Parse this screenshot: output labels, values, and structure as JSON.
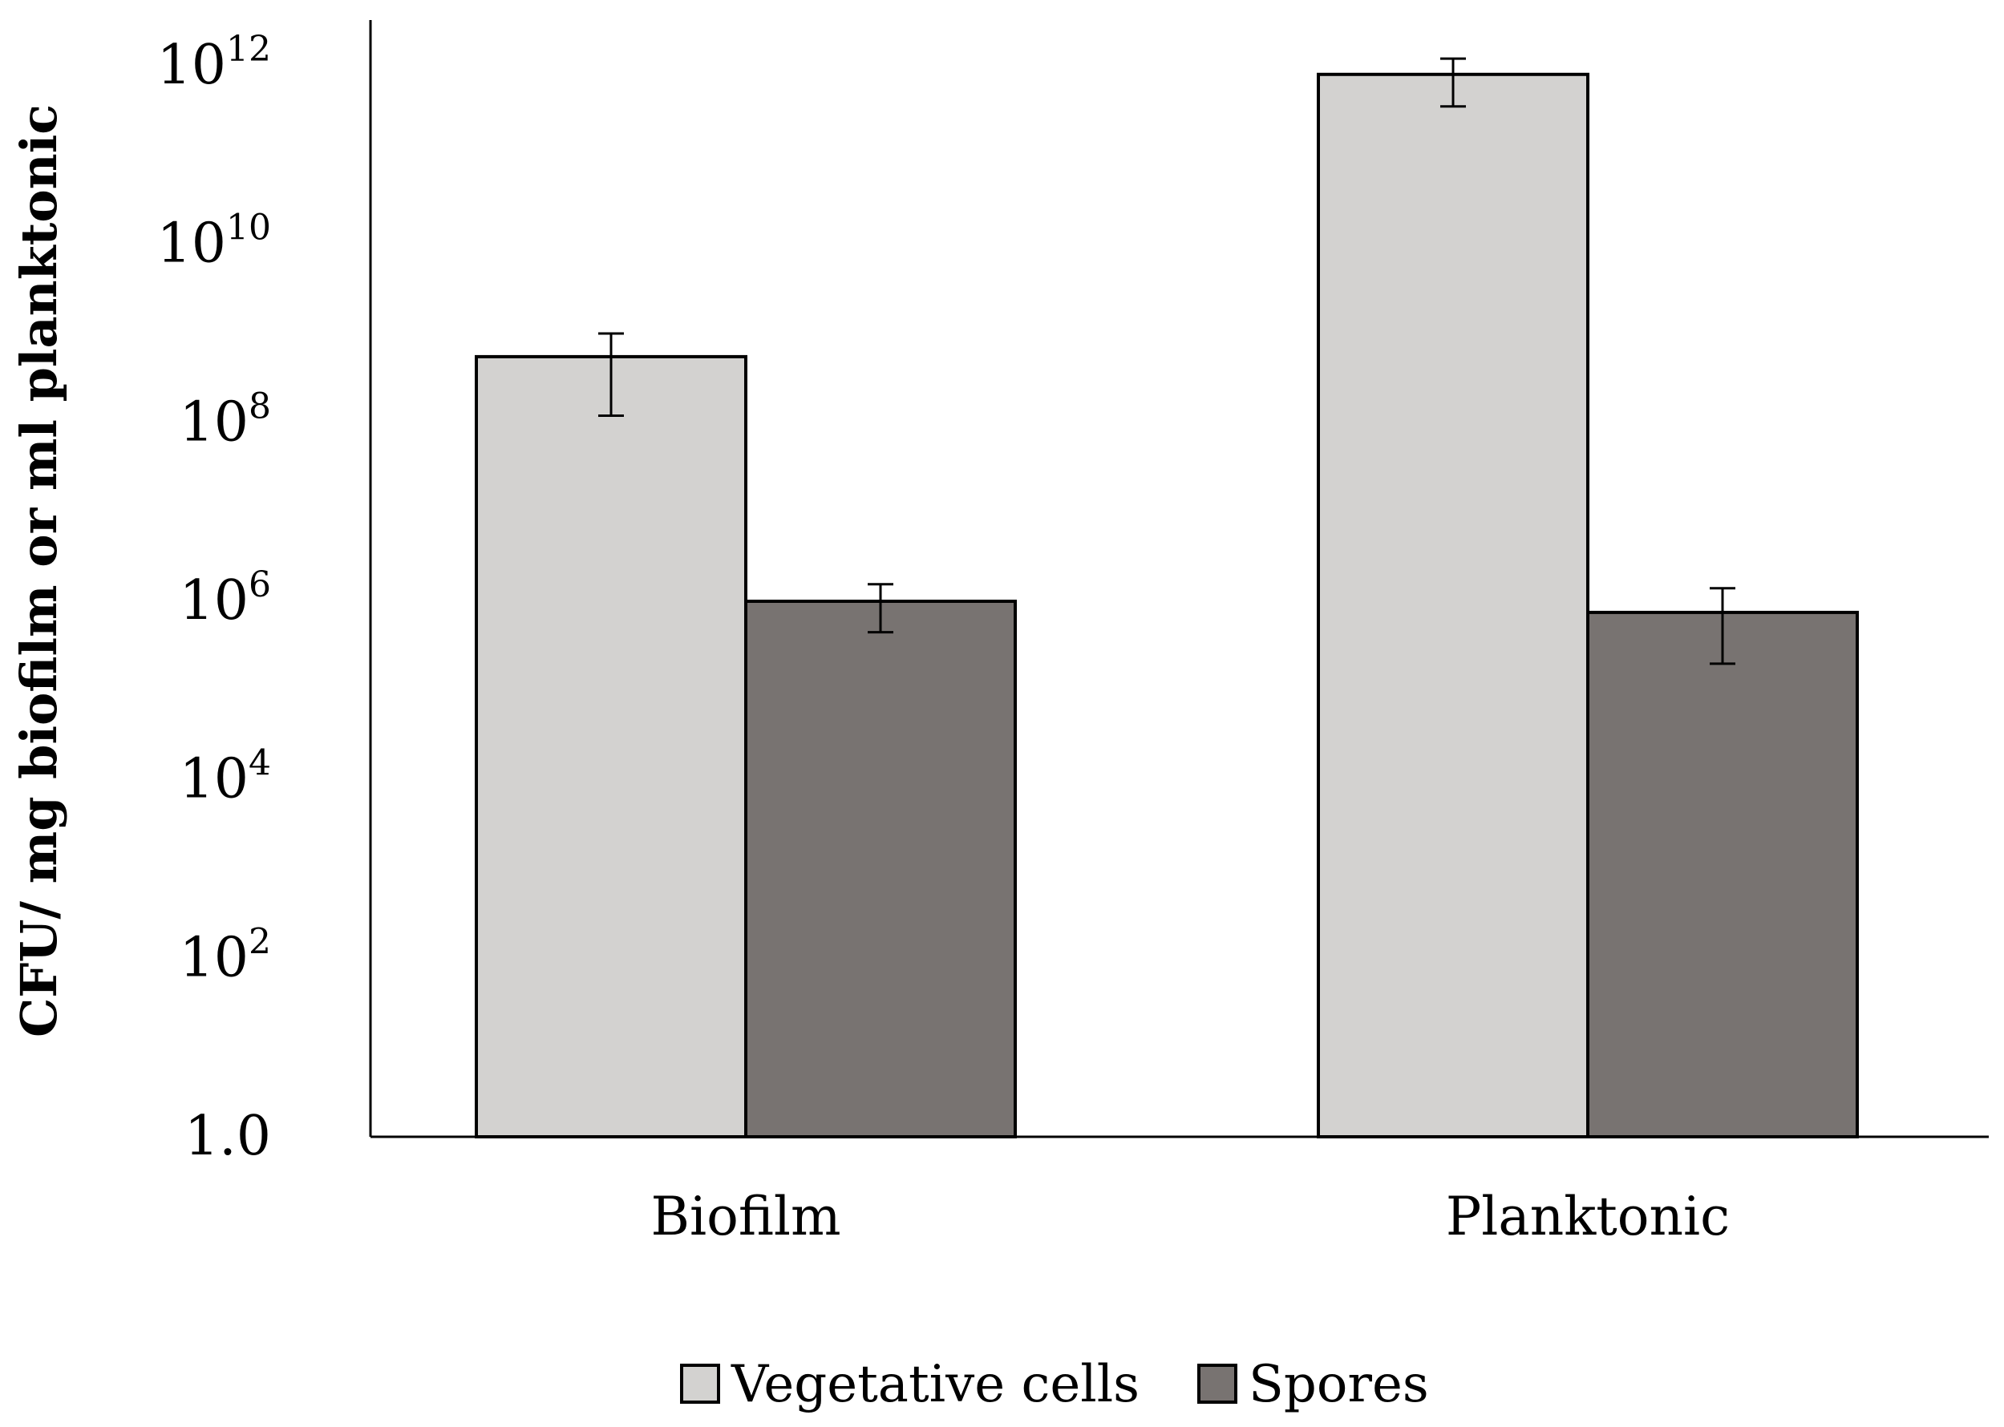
{
  "chart_data": {
    "type": "bar",
    "title": "",
    "xlabel": "",
    "ylabel": "CFU/ mg biofilm or ml planktonic",
    "yscale": "log",
    "ylim": [
      1,
      1000000000000
    ],
    "yticks": [
      {
        "base": "1.0",
        "exp": ""
      },
      {
        "base": "10",
        "exp": "2"
      },
      {
        "base": "10",
        "exp": "4"
      },
      {
        "base": "10",
        "exp": "6"
      },
      {
        "base": "10",
        "exp": "8"
      },
      {
        "base": "10",
        "exp": "10"
      },
      {
        "base": "10",
        "exp": "12"
      }
    ],
    "ytick_values": [
      1,
      100,
      10000,
      1000000,
      100000000,
      10000000000,
      1000000000000
    ],
    "categories": [
      "Biofilm",
      "Planktonic"
    ],
    "series": [
      {
        "name": "Vegetative cells",
        "color": "#d3d2d0",
        "values": [
          550000000,
          800000000000
        ],
        "error_low": [
          120000000,
          350000000000
        ],
        "error_high": [
          1000000000,
          1200000000000
        ]
      },
      {
        "name": "Spores",
        "color": "#787371",
        "values": [
          1000000,
          750000
        ],
        "error_low": [
          450000,
          200000
        ],
        "error_high": [
          1550000,
          1400000
        ]
      }
    ],
    "legend_position": "bottom",
    "grid": false
  }
}
